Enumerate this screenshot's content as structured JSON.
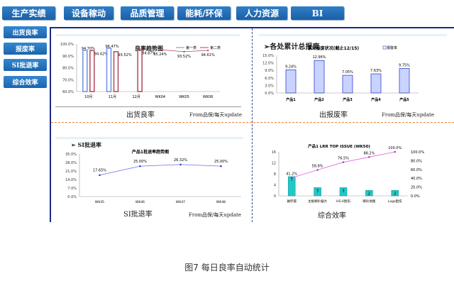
{
  "nav": [
    "生产实绩",
    "设备稼动",
    "品质管理",
    "能耗/环保",
    "人力资源",
    "BI"
  ],
  "sidebar": [
    "出货良率",
    "报废率",
    "SI批退率",
    "综合效率"
  ],
  "colors": {
    "nav": "#1f65ae",
    "panel_border": "#1a2a8a",
    "divider": "#f08030",
    "bar_blue": "#6f8fe8",
    "bar_red": "#b0475a",
    "bar_cyan": "#22c8c8",
    "line_pink": "#e060e0"
  },
  "panels": {
    "yield": {
      "caption": "出货良率",
      "source": "From品保/每天update"
    },
    "scrap": {
      "heading": "➢各处累计总报废",
      "caption": "出报废率",
      "source": "From品保/每天update"
    },
    "si": {
      "heading": "➢        SI批退率",
      "caption": "SI批退率",
      "source": "From品保/每天update"
    },
    "oee": {
      "caption": "综合效率"
    }
  },
  "chart_data": [
    {
      "type": "bar+line",
      "title": "良率趋势图",
      "categories": [
        "10月",
        "11月",
        "12月",
        "WK04",
        "WK05",
        "WK06"
      ],
      "series": [
        {
          "name": "第一类",
          "values": [
            94.7,
            96.47,
            null,
            null,
            null,
            null
          ]
        },
        {
          "name": "第二类",
          "values": [
            94.42,
            93.52,
            94.87,
            95.24,
            93.52,
            94.61
          ]
        }
      ],
      "labels": [
        [
          "94.70%",
          "96.47%",
          null
        ],
        [
          "94.42%",
          "93.52%",
          "94.87%",
          "95.24%",
          "93.52%",
          "94.61%"
        ]
      ],
      "yticks": [
        "100.0%",
        "90.0%",
        "80.0%",
        "70.0%",
        "60.0%"
      ],
      "ylim": [
        60,
        100
      ]
    },
    {
      "type": "bar",
      "title": "累计报废状况(截止12/15)",
      "legend": "报废率",
      "categories": [
        "产品1",
        "产品2",
        "产品3",
        "产品4",
        "产品5"
      ],
      "values": [
        9.24,
        12.96,
        7.05,
        7.63,
        9.75
      ],
      "labels": [
        "9.24%",
        "12.96%",
        "7.05%",
        "7.63%",
        "9.75%"
      ],
      "yticks": [
        "15.0%",
        "12.0%",
        "9.0%",
        "6.0%",
        "3.0%",
        "0.0%"
      ],
      "ylim": [
        0,
        15
      ]
    },
    {
      "type": "line",
      "title": "产品1批退率趋势图",
      "categories": [
        "WK45",
        "WK46",
        "WK47",
        "WK48"
      ],
      "values": [
        17.65,
        25.0,
        26.32,
        25.0
      ],
      "labels": [
        "17.65%",
        "25.00%",
        "26.32%",
        "25.00%"
      ],
      "yticks": [
        "35.0%",
        "28.0%",
        "21.0%",
        "14.0%",
        "7.0%",
        "0.0%"
      ],
      "ylim": [
        0,
        35
      ]
    },
    {
      "type": "pareto",
      "title": "产品1 LRR TOP ISSUE (WK50)",
      "categories": [
        "磁环漏",
        "主板喇叭偏大",
        "HS-0刮伤",
        "喇叭地图",
        "Logo刮伤"
      ],
      "values": [
        7,
        3,
        3,
        2,
        2
      ],
      "cumulative": [
        41.2,
        58.8,
        76.5,
        88.2,
        100.0
      ],
      "cum_labels": [
        "41.2%",
        "58.8%",
        "76.5%",
        "88.2%",
        "100.0%"
      ],
      "yticks": [
        "16",
        "12",
        "8",
        "4",
        "0"
      ],
      "y2ticks": [
        "100.0%",
        "80.0%",
        "60.0%",
        "40.0%",
        "20.0%",
        "0.0%"
      ],
      "ylim": [
        0,
        16
      ],
      "y2lim": [
        0,
        100
      ]
    }
  ],
  "caption": "图7  每日良率自动统计"
}
